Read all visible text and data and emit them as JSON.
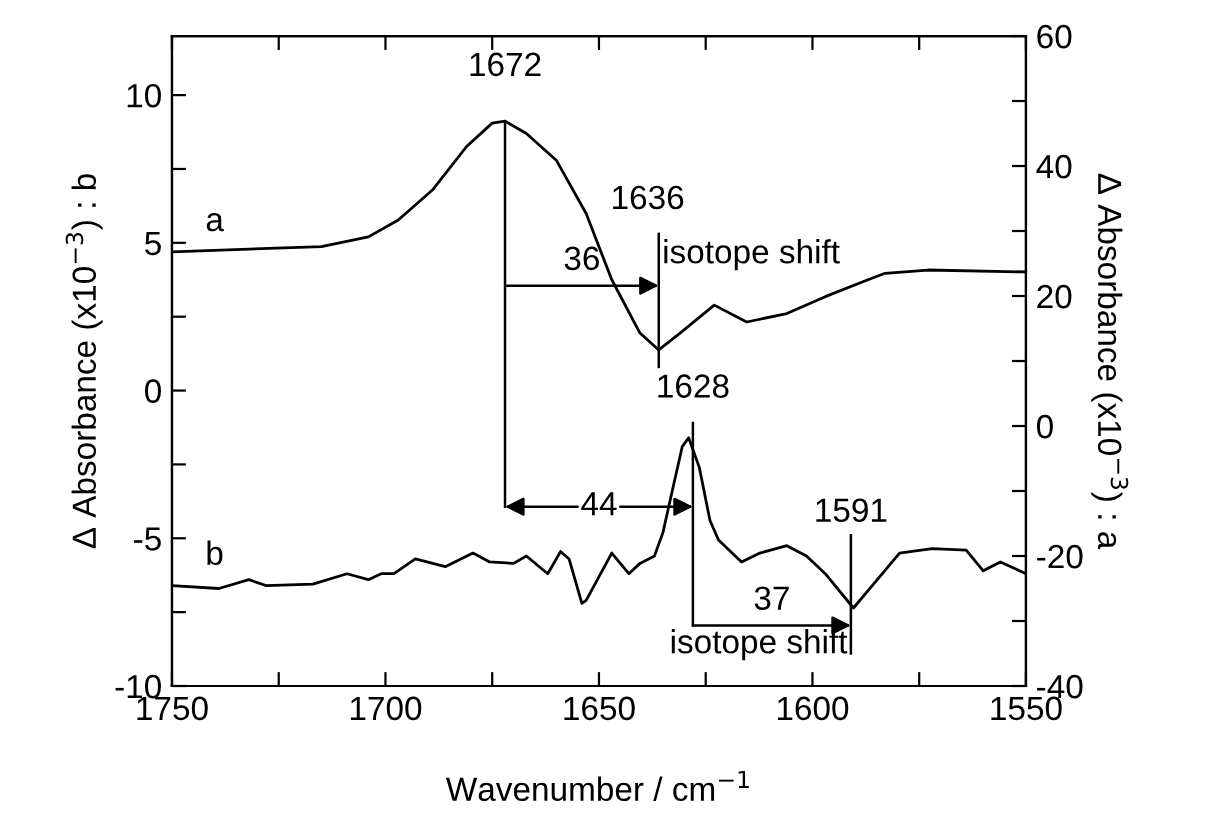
{
  "chart_data": {
    "type": "line",
    "xlabel": "Wavenumber / cm$^{−1}$",
    "ylabel": "Δ Absorbance (x10$^{−3}$) : b",
    "y2label": "Δ Absorbance (x10$^{−3}$) : a",
    "xlim": [
      1750,
      1550
    ],
    "xticks": [
      1750,
      {
        "value": 1725,
        "label": null
      },
      1700,
      {
        "value": 1675,
        "label": null
      },
      1650,
      {
        "value": 1625,
        "label": null
      },
      1600,
      {
        "value": 1575,
        "label": null
      },
      1550
    ],
    "ylim": [
      -10,
      12
    ],
    "yticks": [
      -10,
      {
        "value": -7.5,
        "label": null
      },
      -5,
      {
        "value": -2.5,
        "label": null
      },
      0,
      {
        "value": 2.5,
        "label": null
      },
      5,
      {
        "value": 7.5,
        "label": null
      },
      10
    ],
    "y2lim": [
      -40,
      60
    ],
    "y2ticks": [
      -40,
      {
        "value": -30,
        "label": null
      },
      -20,
      {
        "value": -10,
        "label": null
      },
      0,
      {
        "value": 10,
        "label": null
      },
      20,
      {
        "value": 30,
        "label": null
      },
      40,
      {
        "value": 50,
        "label": null
      },
      60
    ],
    "grid": false,
    "legend": false,
    "series": [
      {
        "name": "a",
        "color": "#000000",
        "axis": "y2",
        "x": [
          1750,
          1715,
          1704,
          1697,
          1689,
          1681,
          1675,
          1672,
          1667,
          1660,
          1653,
          1647,
          1640.4,
          1636,
          1631,
          1623,
          1615.4,
          1606,
          1597,
          1587,
          1583,
          1573,
          1550
        ],
        "values": [
          26.8,
          27.6,
          29.1,
          31.7,
          36.3,
          43.0,
          46.6,
          46.9,
          45.0,
          40.9,
          32.7,
          22.5,
          14.3,
          11.7,
          14.3,
          18.6,
          16.0,
          17.3,
          19.9,
          22.5,
          23.5,
          24.0,
          23.7
        ]
      },
      {
        "name": "b",
        "color": "#000000",
        "x": [
          1750,
          1739,
          1732,
          1728,
          1717,
          1709,
          1704,
          1701,
          1698,
          1693,
          1686,
          1679.5,
          1675.6,
          1670,
          1667,
          1662,
          1659,
          1657,
          1654,
          1653,
          1647,
          1643,
          1640.4,
          1637,
          1635,
          1633,
          1630.5,
          1629,
          1626.5,
          1624,
          1622,
          1616.6,
          1612.3,
          1606,
          1601.4,
          1597,
          1590.4,
          1586,
          1579.6,
          1572,
          1564,
          1560,
          1556,
          1550
        ],
        "values": [
          -6.6,
          -6.7,
          -6.4,
          -6.6,
          -6.55,
          -6.2,
          -6.4,
          -6.2,
          -6.2,
          -5.7,
          -5.96,
          -5.5,
          -5.8,
          -5.85,
          -5.6,
          -6.2,
          -5.45,
          -5.7,
          -7.2,
          -7.1,
          -5.5,
          -6.2,
          -5.85,
          -5.6,
          -4.8,
          -3.5,
          -1.9,
          -1.6,
          -2.6,
          -4.4,
          -5.06,
          -5.8,
          -5.5,
          -5.25,
          -5.6,
          -6.2,
          -7.36,
          -6.6,
          -5.5,
          -5.35,
          -5.4,
          -6.1,
          -5.8,
          -6.2
        ]
      }
    ],
    "annotations": [
      {
        "text": "1672",
        "x": 1672,
        "y": 9.1
      },
      {
        "text": "1636",
        "x": 1636,
        "y": 1.4
      },
      {
        "text": "1628",
        "x": 1628,
        "y": -1.6
      },
      {
        "text": "1591",
        "x": 1591,
        "y": -7.4
      },
      "36",
      "44",
      "37",
      "isotope shift",
      "isotope shift"
    ]
  }
}
